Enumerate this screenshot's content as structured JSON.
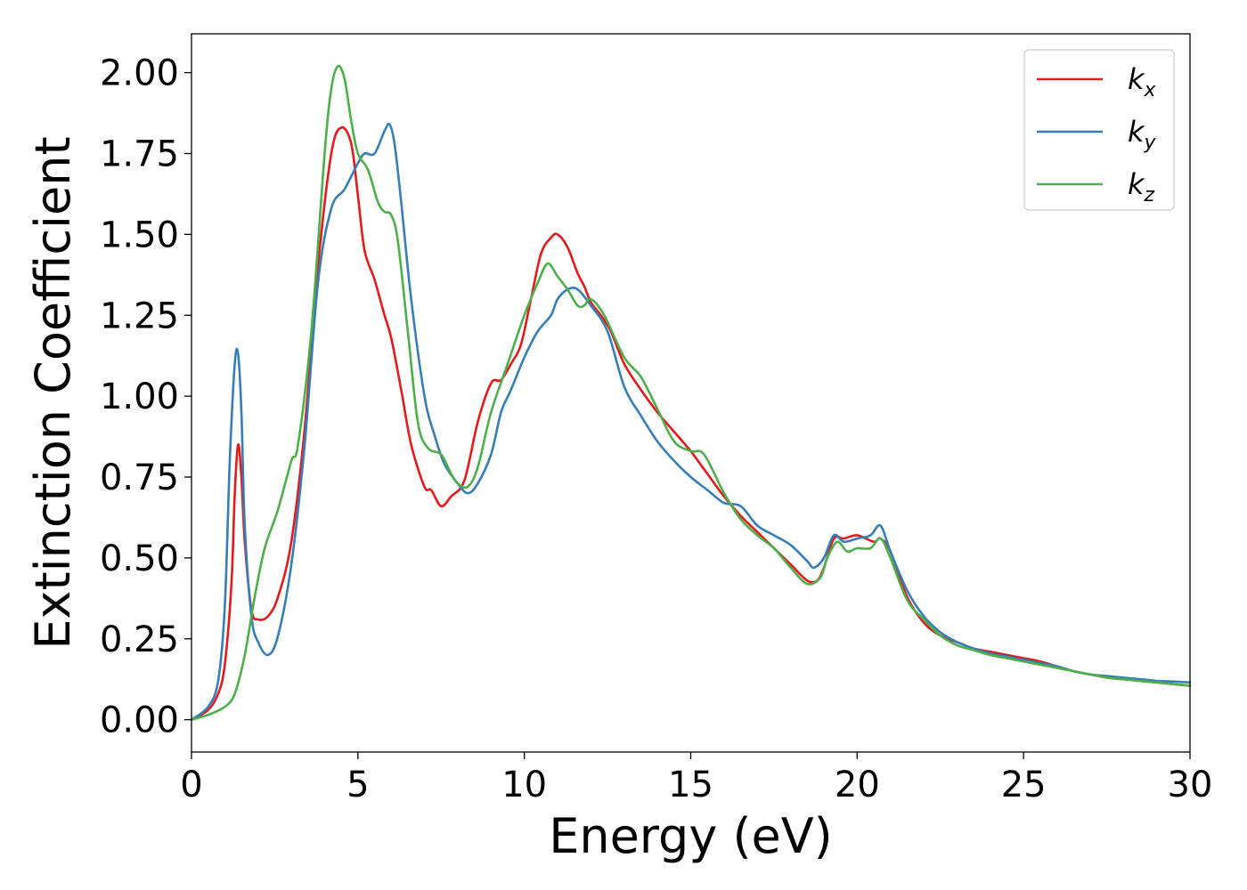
{
  "chart_data": {
    "type": "line",
    "title": "",
    "xlabel": "Energy (eV)",
    "ylabel": "Extinction Coefficient",
    "xlim": [
      0,
      30
    ],
    "ylim": [
      -0.1,
      2.12
    ],
    "xticks": [
      0,
      5,
      10,
      15,
      20,
      25,
      30
    ],
    "xtick_labels": [
      "0",
      "5",
      "10",
      "15",
      "20",
      "25",
      "30"
    ],
    "yticks": [
      0.0,
      0.25,
      0.5,
      0.75,
      1.0,
      1.25,
      1.5,
      1.75,
      2.0
    ],
    "ytick_labels": [
      "0.00",
      "0.25",
      "0.50",
      "0.75",
      "1.00",
      "1.25",
      "1.50",
      "1.75",
      "2.00"
    ],
    "grid": false,
    "legend_position": "top-right",
    "series": [
      {
        "name": "k",
        "sub": "x",
        "color": "#e41a1c",
        "x": [
          0,
          0.5,
          0.8,
          1.0,
          1.2,
          1.3,
          1.4,
          1.5,
          1.6,
          1.8,
          2.0,
          2.3,
          2.6,
          3.0,
          3.4,
          3.8,
          4.2,
          4.5,
          4.8,
          5.0,
          5.2,
          5.5,
          5.8,
          6.0,
          6.3,
          6.6,
          7.0,
          7.2,
          7.5,
          7.8,
          8.2,
          8.6,
          9.0,
          9.3,
          9.6,
          9.9,
          10.2,
          10.5,
          10.8,
          11.0,
          11.3,
          11.6,
          11.8,
          12.0,
          12.3,
          12.6,
          13.0,
          13.5,
          14.0,
          14.5,
          15.0,
          15.5,
          16.0,
          16.5,
          17.0,
          17.5,
          18.0,
          18.5,
          18.8,
          19.0,
          19.3,
          19.6,
          20.0,
          20.5,
          20.7,
          21.0,
          21.5,
          22.0,
          22.5,
          23.0,
          23.5,
          24.0,
          24.5,
          25.0,
          25.5,
          26.0,
          26.5,
          27.0,
          27.5,
          28.0,
          28.5,
          29.0,
          29.5,
          30.0
        ],
        "y": [
          0.0,
          0.03,
          0.08,
          0.17,
          0.42,
          0.7,
          0.85,
          0.75,
          0.55,
          0.34,
          0.31,
          0.32,
          0.38,
          0.55,
          0.9,
          1.4,
          1.75,
          1.83,
          1.78,
          1.62,
          1.45,
          1.36,
          1.25,
          1.18,
          1.02,
          0.85,
          0.72,
          0.71,
          0.66,
          0.69,
          0.74,
          0.92,
          1.04,
          1.05,
          1.1,
          1.16,
          1.3,
          1.44,
          1.49,
          1.5,
          1.46,
          1.38,
          1.34,
          1.29,
          1.25,
          1.2,
          1.1,
          1.02,
          0.95,
          0.89,
          0.83,
          0.76,
          0.69,
          0.63,
          0.58,
          0.53,
          0.48,
          0.43,
          0.43,
          0.47,
          0.56,
          0.56,
          0.57,
          0.55,
          0.56,
          0.52,
          0.38,
          0.3,
          0.26,
          0.24,
          0.22,
          0.21,
          0.2,
          0.19,
          0.18,
          0.165,
          0.15,
          0.14,
          0.13,
          0.125,
          0.12,
          0.115,
          0.11,
          0.105
        ]
      },
      {
        "name": "k",
        "sub": "y",
        "color": "#377eb8",
        "x": [
          0,
          0.5,
          0.8,
          1.0,
          1.15,
          1.3,
          1.4,
          1.5,
          1.6,
          1.8,
          2.0,
          2.3,
          2.6,
          3.0,
          3.4,
          3.8,
          4.2,
          4.6,
          5.0,
          5.2,
          5.5,
          5.8,
          5.95,
          6.1,
          6.3,
          6.6,
          7.0,
          7.3,
          7.6,
          8.0,
          8.3,
          8.6,
          9.0,
          9.3,
          9.6,
          10.0,
          10.4,
          10.8,
          11.0,
          11.3,
          11.6,
          12.0,
          12.5,
          13.0,
          13.5,
          14.0,
          14.5,
          15.0,
          15.5,
          16.0,
          16.5,
          17.0,
          17.5,
          18.0,
          18.5,
          18.7,
          19.0,
          19.3,
          19.6,
          20.0,
          20.4,
          20.7,
          21.0,
          21.5,
          22.0,
          22.5,
          23.0,
          23.5,
          24.0,
          24.5,
          25.0,
          25.5,
          26.0,
          26.5,
          27.0,
          27.5,
          28.0,
          28.5,
          29.0,
          29.5,
          30.0
        ],
        "y": [
          0.0,
          0.04,
          0.12,
          0.35,
          0.8,
          1.1,
          1.13,
          0.95,
          0.6,
          0.32,
          0.24,
          0.2,
          0.26,
          0.48,
          0.85,
          1.35,
          1.58,
          1.64,
          1.72,
          1.75,
          1.75,
          1.82,
          1.84,
          1.78,
          1.6,
          1.3,
          1.0,
          0.88,
          0.79,
          0.73,
          0.7,
          0.73,
          0.82,
          0.95,
          1.02,
          1.12,
          1.2,
          1.25,
          1.3,
          1.33,
          1.33,
          1.28,
          1.2,
          1.03,
          0.94,
          0.86,
          0.8,
          0.75,
          0.71,
          0.67,
          0.66,
          0.6,
          0.57,
          0.54,
          0.49,
          0.47,
          0.5,
          0.57,
          0.55,
          0.56,
          0.57,
          0.6,
          0.52,
          0.4,
          0.32,
          0.27,
          0.24,
          0.22,
          0.205,
          0.195,
          0.185,
          0.175,
          0.165,
          0.15,
          0.14,
          0.135,
          0.13,
          0.125,
          0.12,
          0.118,
          0.115
        ]
      },
      {
        "name": "k",
        "sub": "z",
        "color": "#4daf4a",
        "x": [
          0,
          0.5,
          1.0,
          1.3,
          1.6,
          1.9,
          2.2,
          2.6,
          3.0,
          3.2,
          3.6,
          4.0,
          4.2,
          4.4,
          4.6,
          4.8,
          5.0,
          5.3,
          5.6,
          5.8,
          6.0,
          6.2,
          6.5,
          6.8,
          7.1,
          7.5,
          7.8,
          8.0,
          8.3,
          8.6,
          9.0,
          9.5,
          10.0,
          10.4,
          10.7,
          11.0,
          11.3,
          11.6,
          11.8,
          12.0,
          12.4,
          13.0,
          13.5,
          14.0,
          14.5,
          15.0,
          15.4,
          16.0,
          16.5,
          17.0,
          17.5,
          18.0,
          18.5,
          18.9,
          19.1,
          19.4,
          19.7,
          20.0,
          20.4,
          20.7,
          21.0,
          21.5,
          22.0,
          22.5,
          23.0,
          23.5,
          24.0,
          24.5,
          25.0,
          25.5,
          26.0,
          26.5,
          27.0,
          27.5,
          28.0,
          28.5,
          29.0,
          29.5,
          30.0
        ],
        "y": [
          0.0,
          0.015,
          0.04,
          0.08,
          0.2,
          0.38,
          0.53,
          0.65,
          0.8,
          0.85,
          1.2,
          1.75,
          1.95,
          2.02,
          1.98,
          1.85,
          1.75,
          1.7,
          1.6,
          1.57,
          1.56,
          1.48,
          1.2,
          0.92,
          0.84,
          0.82,
          0.76,
          0.73,
          0.72,
          0.78,
          0.95,
          1.1,
          1.25,
          1.35,
          1.41,
          1.37,
          1.33,
          1.28,
          1.28,
          1.3,
          1.25,
          1.12,
          1.06,
          0.96,
          0.86,
          0.83,
          0.82,
          0.7,
          0.62,
          0.57,
          0.53,
          0.47,
          0.42,
          0.44,
          0.5,
          0.55,
          0.52,
          0.53,
          0.53,
          0.56,
          0.5,
          0.37,
          0.31,
          0.26,
          0.23,
          0.215,
          0.2,
          0.19,
          0.18,
          0.17,
          0.16,
          0.15,
          0.14,
          0.13,
          0.125,
          0.12,
          0.115,
          0.11,
          0.105
        ]
      }
    ]
  }
}
